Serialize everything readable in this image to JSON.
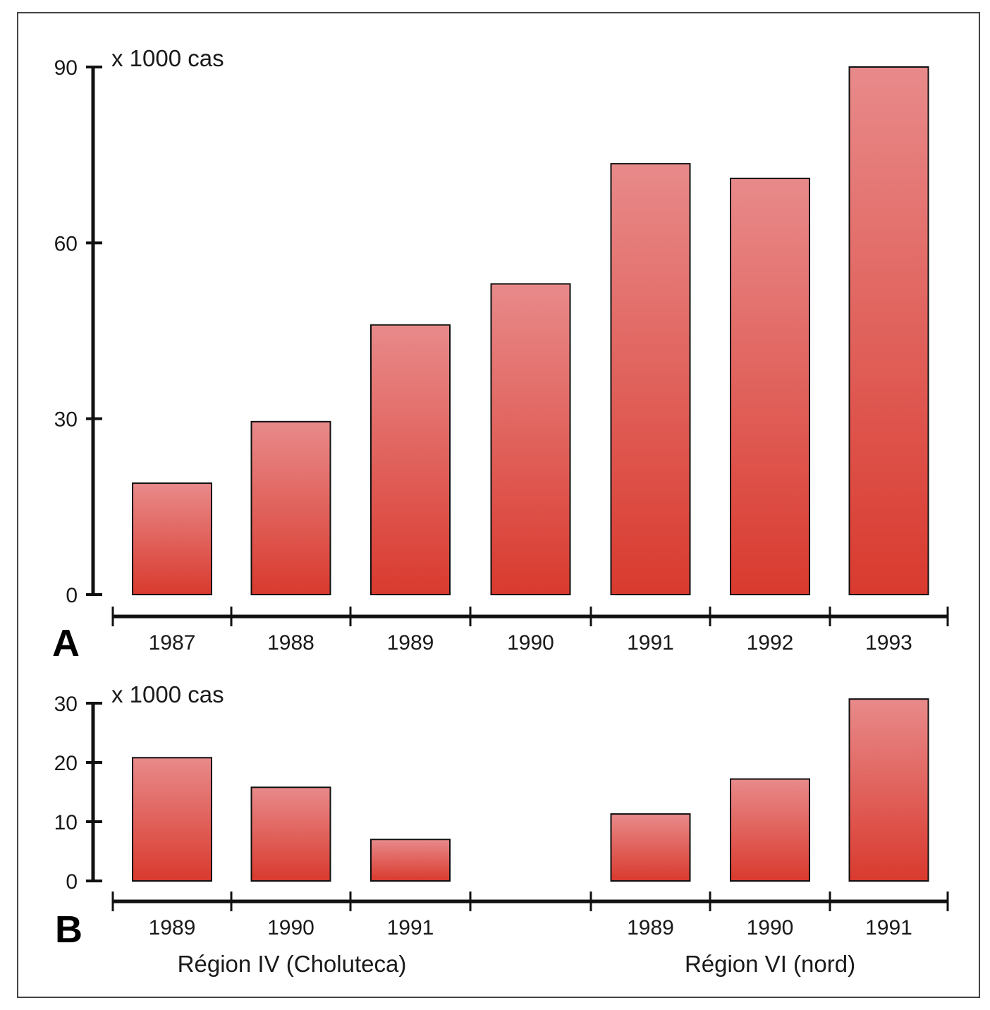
{
  "colors": {
    "bar_top": "#e88a8a",
    "bar_bottom": "#d93a2e",
    "axis": "#111111",
    "frame": "#444444"
  },
  "chart_data": [
    {
      "type": "bar",
      "panel_label": "A",
      "unit_label": "x 1000 cas",
      "ylim": [
        0,
        90
      ],
      "yticks": [
        0,
        30,
        60,
        90
      ],
      "categories": [
        "1987",
        "1988",
        "1989",
        "1990",
        "1991",
        "1992",
        "1993"
      ],
      "values": [
        19,
        29.5,
        46,
        53,
        73.5,
        71,
        90
      ],
      "grid": false
    },
    {
      "type": "bar",
      "panel_label": "B",
      "unit_label": "x 1000 cas",
      "ylim": [
        0,
        30
      ],
      "yticks": [
        0,
        10,
        20,
        30
      ],
      "groups": [
        {
          "name": "Région IV (Choluteca)",
          "categories": [
            "1989",
            "1990",
            "1991"
          ],
          "values": [
            20.8,
            15.8,
            7
          ]
        },
        {
          "name": "Région VI (nord)",
          "categories": [
            "1989",
            "1990",
            "1991"
          ],
          "values": [
            11.3,
            17.2,
            30.7
          ]
        }
      ],
      "grid": false
    }
  ]
}
